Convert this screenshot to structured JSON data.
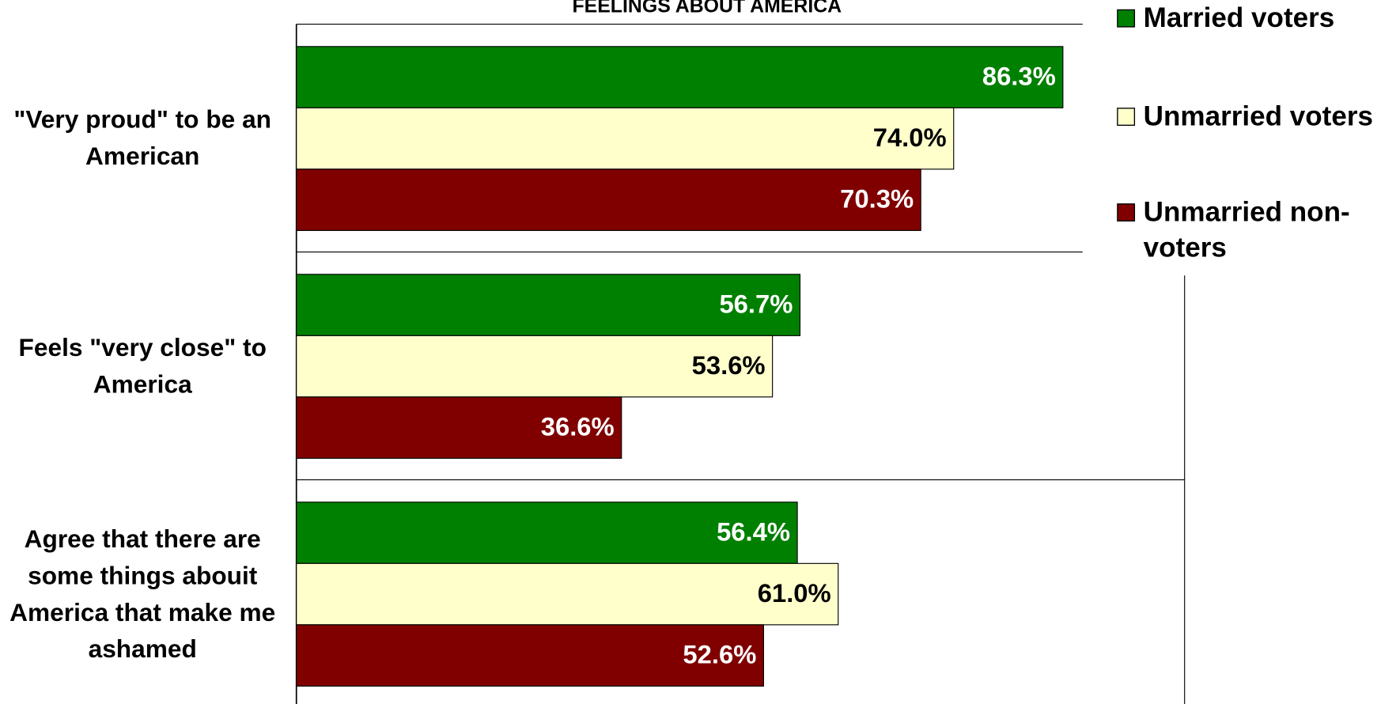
{
  "chart_data": {
    "type": "bar",
    "orientation": "horizontal",
    "title": "FEELINGS ABOUT AMERICA",
    "categories": [
      "\"Very proud\" to be an American",
      "Feels \"very close\" to America",
      "Agree that there are some things abouit America that make me ashamed"
    ],
    "series": [
      {
        "name": "Married voters",
        "color": "#008000",
        "label_color": "#ffffff",
        "values": [
          86.3,
          56.7,
          56.4
        ],
        "value_labels": [
          "86.3%",
          "56.7%",
          "56.4%"
        ]
      },
      {
        "name": "Unmarried voters",
        "color": "#ffffcc",
        "label_color": "#000000",
        "values": [
          74.0,
          53.6,
          61.0
        ],
        "value_labels": [
          "74.0%",
          "53.6%",
          "61.0%"
        ]
      },
      {
        "name": "Unmarried non-voters",
        "color": "#800000",
        "label_color": "#ffffff",
        "values": [
          70.3,
          36.6,
          52.6
        ],
        "value_labels": [
          "70.3%",
          "36.6%",
          "52.6%"
        ]
      }
    ],
    "xlim": [
      0,
      100
    ],
    "legend": "top-right"
  }
}
